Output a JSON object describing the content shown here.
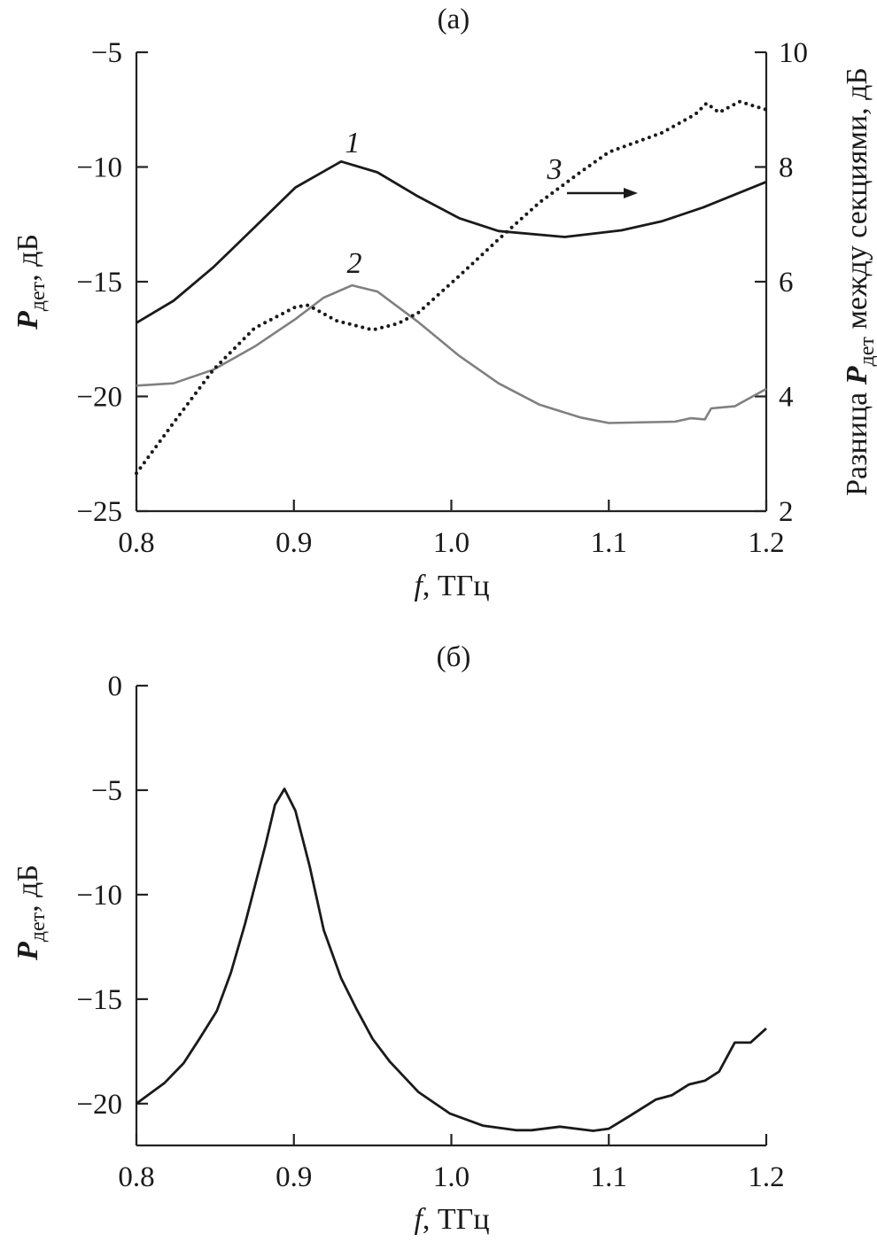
{
  "chart_data": [
    {
      "type": "line",
      "panel_label": "(а)",
      "xlabel": {
        "italic": "f",
        "rest": ", ТГц"
      },
      "ylabel": {
        "main": "P",
        "sub": "дет",
        "rest": ", дБ"
      },
      "ylabel_right": {
        "pre": "Разница ",
        "main": "P",
        "sub": "дет",
        "rest": " между секциями, дБ"
      },
      "xlim": [
        0.8,
        1.2
      ],
      "ylim": [
        -25,
        -5
      ],
      "ylim_right": [
        2,
        10
      ],
      "x_ticks": [
        "0.8",
        "0.9",
        "1.0",
        "1.1",
        "1.2"
      ],
      "y_ticks": [
        "−5",
        "−10",
        "−15",
        "−20",
        "−25"
      ],
      "y_ticks_right": [
        "10",
        "8",
        "6",
        "4",
        "2"
      ],
      "grid": false,
      "series": [
        {
          "name": "1",
          "axis": "left",
          "color": "#1a1a1a",
          "style": "solid",
          "x": [
            0.8,
            0.8236,
            0.849,
            0.875,
            0.901,
            0.93,
            0.953,
            0.979,
            1.005,
            1.03,
            1.072,
            1.108,
            1.134,
            1.16,
            1.2
          ],
          "y": [
            -16.79,
            -15.83,
            -14.36,
            -12.63,
            -10.89,
            -9.76,
            -10.23,
            -11.29,
            -12.23,
            -12.79,
            -13.05,
            -12.76,
            -12.36,
            -11.76,
            -10.65
          ]
        },
        {
          "name": "2",
          "axis": "left",
          "color": "#808080",
          "style": "solid",
          "x": [
            0.8,
            0.8236,
            0.849,
            0.875,
            0.901,
            0.919,
            0.937,
            0.953,
            0.979,
            1.005,
            1.03,
            1.056,
            1.082,
            1.1,
            1.142,
            1.152,
            1.161,
            1.165,
            1.18,
            1.2
          ],
          "y": [
            -19.53,
            -19.43,
            -18.83,
            -17.83,
            -16.63,
            -15.69,
            -15.16,
            -15.43,
            -16.76,
            -18.23,
            -19.43,
            -20.36,
            -20.92,
            -21.16,
            -21.1,
            -20.95,
            -21.0,
            -20.52,
            -20.43,
            -19.67
          ]
        },
        {
          "name": "3",
          "axis": "right",
          "color": "#1a1a1a",
          "style": "dotted",
          "x": [
            0.8,
            0.8236,
            0.849,
            0.875,
            0.901,
            0.909,
            0.927,
            0.95,
            0.966,
            0.979,
            1.005,
            1.03,
            1.056,
            1.082,
            1.1,
            1.134,
            1.155,
            1.162,
            1.17,
            1.183,
            1.2
          ],
          "y": [
            2.66,
            3.54,
            4.47,
            5.19,
            5.56,
            5.59,
            5.32,
            5.16,
            5.27,
            5.46,
            6.1,
            6.74,
            7.38,
            7.91,
            8.26,
            8.6,
            8.92,
            9.11,
            8.95,
            9.14,
            9.0
          ]
        }
      ],
      "annotations": [
        {
          "text": "3",
          "arrow": "right",
          "meaning": "right axis"
        }
      ]
    },
    {
      "type": "line",
      "panel_label": "(б)",
      "xlabel": {
        "italic": "f",
        "rest": ", ТГц"
      },
      "ylabel": {
        "main": "P",
        "sub": "дет",
        "rest": ", дБ"
      },
      "xlim": [
        0.8,
        1.2
      ],
      "ylim": [
        -22,
        0
      ],
      "x_ticks": [
        "0.8",
        "0.9",
        "1.0",
        "1.1",
        "1.2"
      ],
      "y_ticks": [
        "0",
        "−5",
        "−10",
        "−15",
        "−20"
      ],
      "grid": false,
      "series": [
        {
          "color": "#1a1a1a",
          "style": "solid",
          "x": [
            0.8,
            0.818,
            0.83,
            0.84,
            0.851,
            0.86,
            0.869,
            0.875,
            0.882,
            0.888,
            0.894,
            0.901,
            0.91,
            0.919,
            0.93,
            0.94,
            0.95,
            0.961,
            0.979,
            0.999,
            1.02,
            1.041,
            1.051,
            1.069,
            1.09,
            1.1,
            1.113,
            1.13,
            1.14,
            1.151,
            1.161,
            1.17,
            1.18,
            1.19,
            1.2
          ],
          "y": [
            -20.0,
            -19.0,
            -18.06,
            -16.9,
            -15.57,
            -13.74,
            -11.4,
            -9.65,
            -7.6,
            -5.7,
            -4.94,
            -5.99,
            -8.63,
            -11.7,
            -14.0,
            -15.5,
            -16.9,
            -18.0,
            -19.44,
            -20.47,
            -21.05,
            -21.27,
            -21.27,
            -21.1,
            -21.3,
            -21.2,
            -20.6,
            -19.8,
            -19.6,
            -19.08,
            -18.9,
            -18.47,
            -17.08,
            -17.08,
            -16.4
          ]
        }
      ]
    }
  ]
}
